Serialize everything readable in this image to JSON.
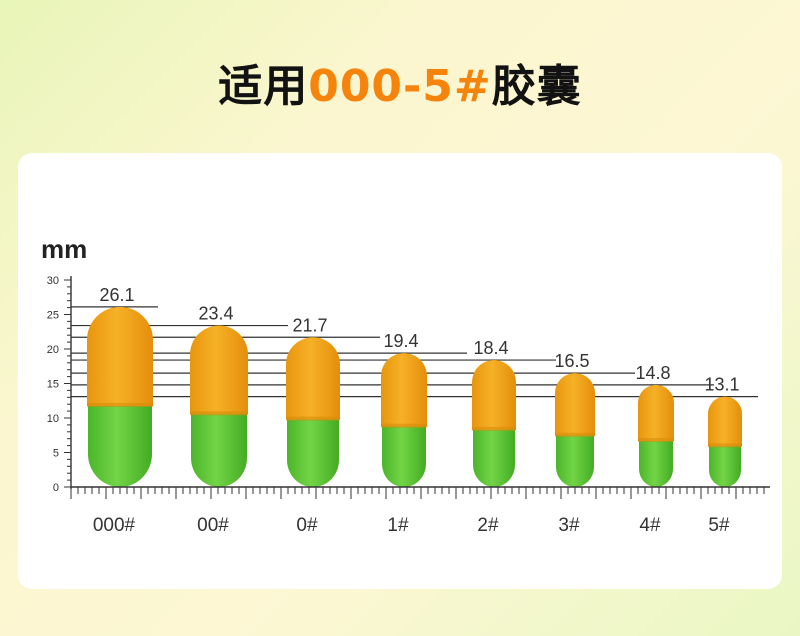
{
  "title": {
    "prefix": "适用",
    "highlight": "000-5#",
    "suffix": "胶囊"
  },
  "colors": {
    "accent": "#f5840c",
    "capsule_cap": "#f2a51c",
    "capsule_body": "#5cc436",
    "card": "#ffffff"
  },
  "chart_data": {
    "type": "bar",
    "ylabel": "mm",
    "ylim": [
      0,
      30
    ],
    "yticks": [
      0,
      5,
      10,
      15,
      20,
      25,
      30
    ],
    "categories": [
      "000#",
      "00#",
      "0#",
      "1#",
      "2#",
      "3#",
      "4#",
      "5#"
    ],
    "values": [
      26.1,
      23.4,
      21.7,
      19.4,
      18.4,
      16.5,
      14.8,
      13.1
    ],
    "value_labels": [
      "26.1",
      "23.4",
      "21.7",
      "19.4",
      "18.4",
      "16.5",
      "14.8",
      "13.1"
    ]
  }
}
